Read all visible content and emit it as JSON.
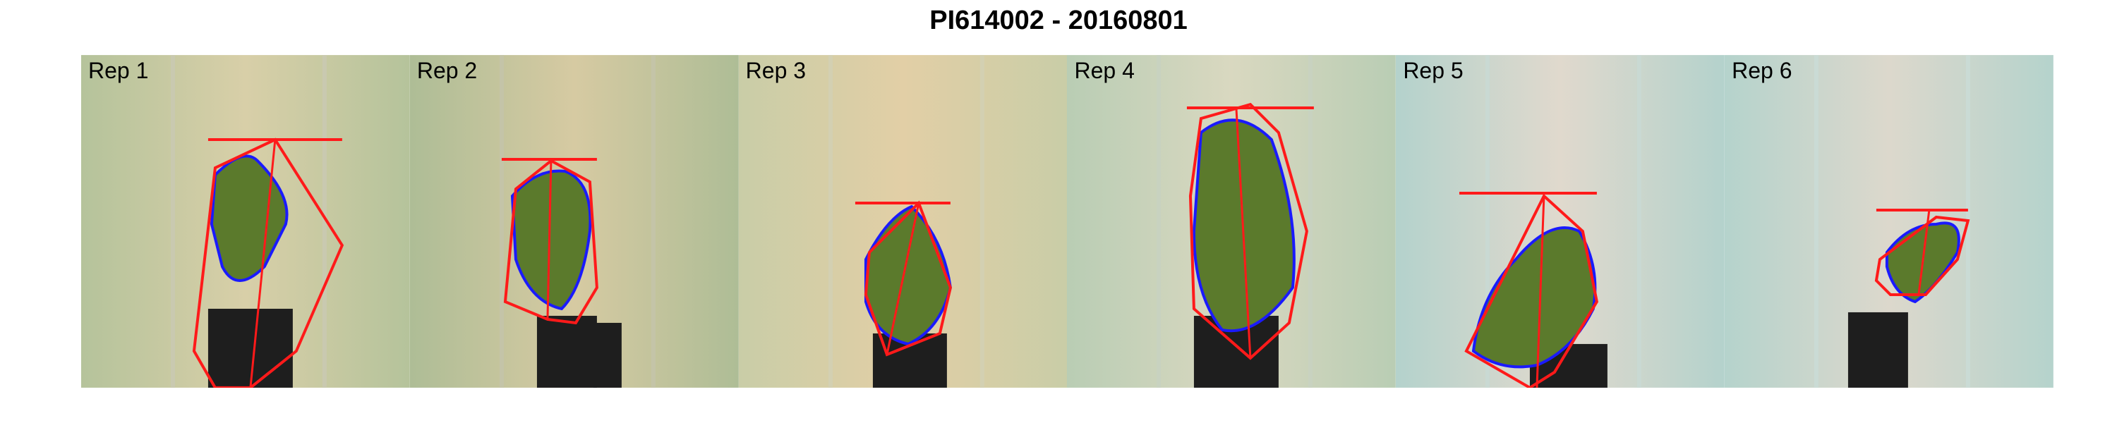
{
  "title": "PI614002 - 20160801",
  "panels": [
    {
      "label": "Rep 1",
      "tint": "#b5c39b",
      "center_tint": "#d8cfa8"
    },
    {
      "label": "Rep 2",
      "tint": "#aebd96",
      "center_tint": "#d6caa2"
    },
    {
      "label": "Rep 3",
      "tint": "#c9cda7",
      "center_tint": "#e2cfa6"
    },
    {
      "label": "Rep 4",
      "tint": "#b9cdb4",
      "center_tint": "#d9d8c0"
    },
    {
      "label": "Rep 5",
      "tint": "#b4d2cc",
      "center_tint": "#e0d9cd"
    },
    {
      "label": "Rep 6",
      "tint": "#b5d3cc",
      "center_tint": "#dcd8cc"
    }
  ],
  "colors": {
    "hull": "#ff1a1a",
    "contour": "#1a1aff",
    "leaf": "#5b7a2c",
    "pot": "#1e1e1e"
  }
}
